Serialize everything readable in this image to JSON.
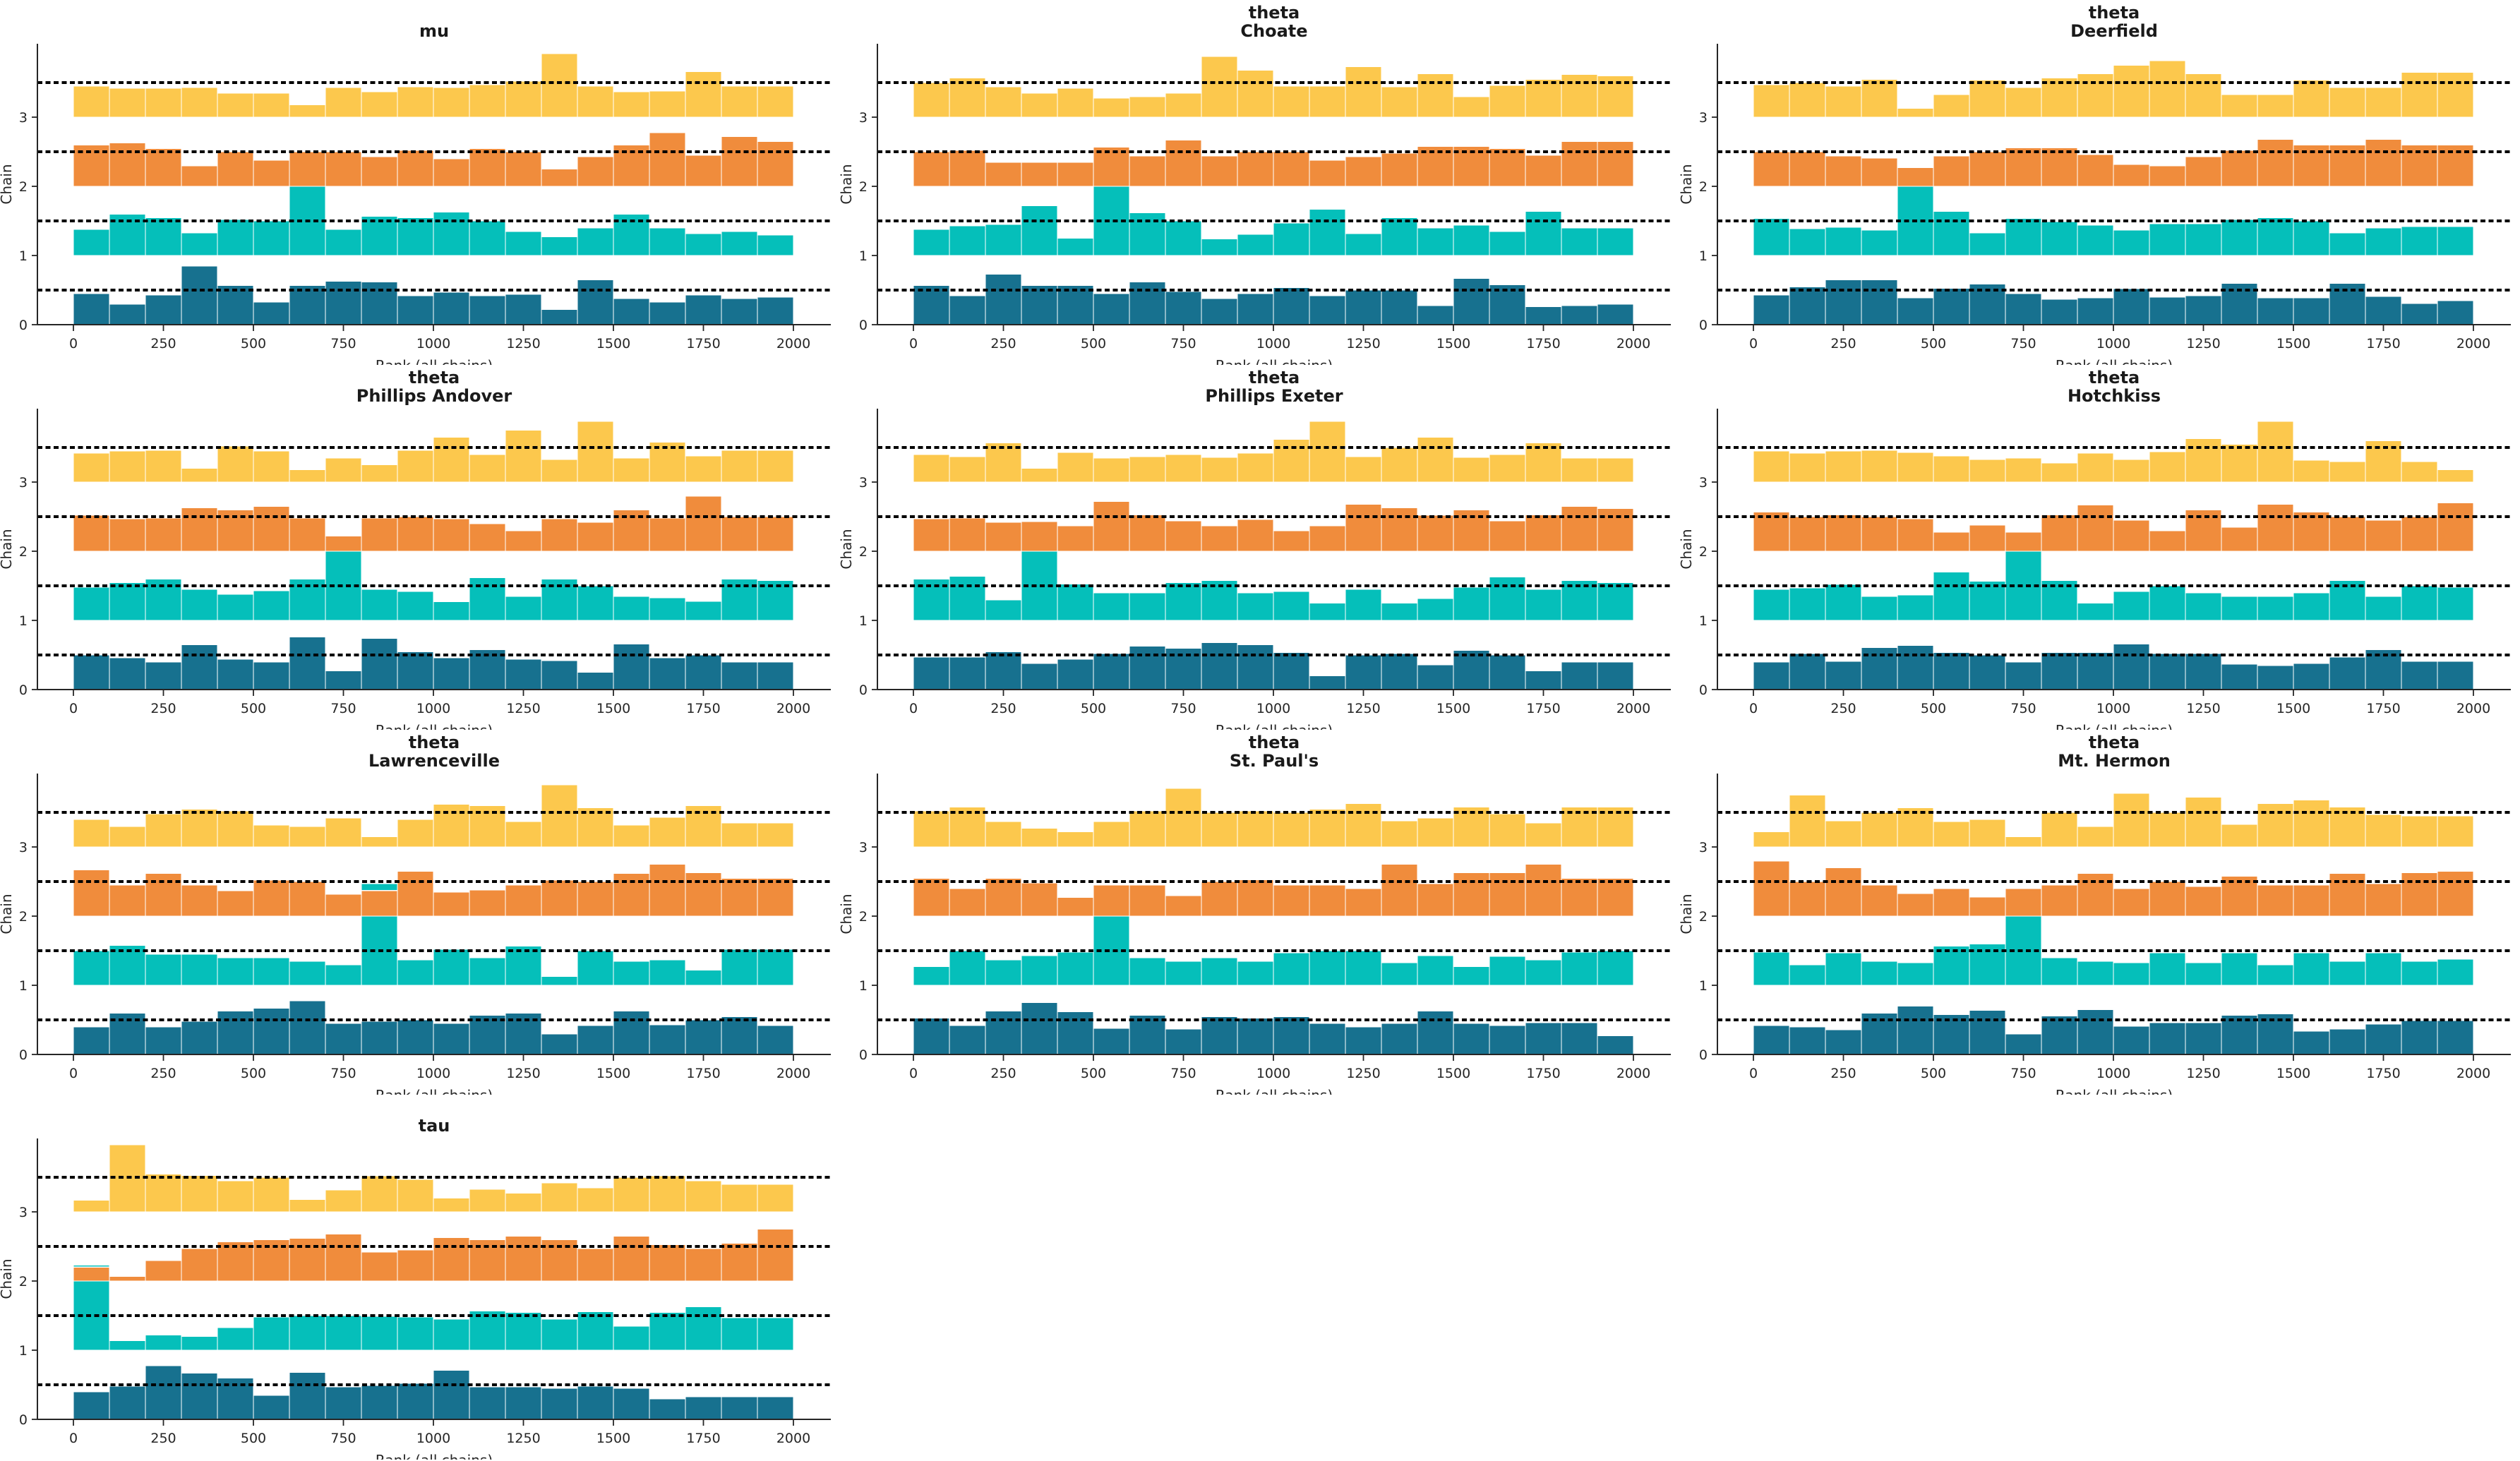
{
  "figure": {
    "kind": "mcmc-rank-plot-grid",
    "xlabel": "Rank (all chains)",
    "ylabel": "Chain"
  },
  "palette": {
    "chain_colors": [
      "#17718F",
      "#05BFBA",
      "#F08C3C",
      "#FCC84D"
    ],
    "reference_line": "#000000",
    "text": "#262626",
    "spine": "#262626",
    "bar_edge": "#ffffff",
    "background": "#ffffff"
  },
  "chart_data": {
    "type": "bar",
    "subtype": "rank-histogram",
    "layout": {
      "rows": 4,
      "cols": 3,
      "legend": "none",
      "grid": "off"
    },
    "xlabel": "Rank (all chains)",
    "ylabel": "Chain",
    "x_ticks": [
      0,
      250,
      500,
      750,
      1000,
      1250,
      1500,
      1750,
      2000
    ],
    "y_ticks": [
      0,
      1,
      2,
      3
    ],
    "x_range": [
      0,
      2000
    ],
    "y_range": [
      0,
      4.06
    ],
    "bins": 20,
    "n_chains": 4,
    "chain_base_offsets": [
      0,
      1,
      2,
      3
    ],
    "reference_line_offset": 0.5,
    "chain_colors": [
      "#17718F",
      "#05BFBA",
      "#F08C3C",
      "#FCC84D"
    ],
    "subplots": [
      {
        "id": "mu",
        "row": 0,
        "col": 0,
        "title_lines": [
          "mu"
        ],
        "chains": [
          [
            0.45,
            0.3,
            0.43,
            0.85,
            0.57,
            0.33,
            0.57,
            0.63,
            0.62,
            0.42,
            0.47,
            0.42,
            0.44,
            0.22,
            0.65,
            0.38,
            0.33,
            0.43,
            0.38,
            0.4
          ],
          [
            0.38,
            0.6,
            0.55,
            0.33,
            0.52,
            0.5,
            1.0,
            0.38,
            0.57,
            0.55,
            0.63,
            0.5,
            0.35,
            0.27,
            0.4,
            0.6,
            0.4,
            0.32,
            0.35,
            0.3
          ],
          [
            0.6,
            0.63,
            0.55,
            0.3,
            0.5,
            0.38,
            0.5,
            0.5,
            0.43,
            0.52,
            0.4,
            0.55,
            0.5,
            0.25,
            0.43,
            0.6,
            0.78,
            0.45,
            0.72,
            0.65
          ],
          [
            0.45,
            0.42,
            0.42,
            0.43,
            0.35,
            0.35,
            0.18,
            0.43,
            0.37,
            0.44,
            0.43,
            0.47,
            0.52,
            0.92,
            0.45,
            0.37,
            0.38,
            0.66,
            0.45,
            0.45
          ]
        ]
      },
      {
        "id": "theta-choate",
        "row": 0,
        "col": 1,
        "title_lines": [
          "theta",
          "Choate"
        ],
        "chains": [
          [
            0.57,
            0.42,
            0.73,
            0.57,
            0.57,
            0.45,
            0.62,
            0.48,
            0.38,
            0.45,
            0.54,
            0.42,
            0.5,
            0.5,
            0.28,
            0.67,
            0.58,
            0.26,
            0.28,
            0.3
          ],
          [
            0.38,
            0.43,
            0.45,
            0.72,
            0.25,
            1.0,
            0.62,
            0.5,
            0.24,
            0.31,
            0.47,
            0.67,
            0.32,
            0.55,
            0.4,
            0.44,
            0.35,
            0.64,
            0.4,
            0.4
          ],
          [
            0.5,
            0.52,
            0.35,
            0.35,
            0.35,
            0.57,
            0.44,
            0.67,
            0.44,
            0.5,
            0.5,
            0.38,
            0.43,
            0.48,
            0.58,
            0.58,
            0.55,
            0.45,
            0.65,
            0.65
          ],
          [
            0.5,
            0.57,
            0.44,
            0.35,
            0.42,
            0.28,
            0.3,
            0.35,
            0.88,
            0.68,
            0.45,
            0.45,
            0.73,
            0.44,
            0.63,
            0.3,
            0.46,
            0.55,
            0.62,
            0.6
          ]
        ]
      },
      {
        "id": "theta-deerfield",
        "row": 0,
        "col": 2,
        "title_lines": [
          "theta",
          "Deerfield"
        ],
        "chains": [
          [
            0.43,
            0.55,
            0.65,
            0.65,
            0.39,
            0.53,
            0.59,
            0.45,
            0.37,
            0.39,
            0.52,
            0.4,
            0.42,
            0.6,
            0.39,
            0.39,
            0.6,
            0.41,
            0.31,
            0.35
          ],
          [
            0.54,
            0.39,
            0.41,
            0.37,
            1.0,
            0.64,
            0.33,
            0.54,
            0.49,
            0.44,
            0.37,
            0.46,
            0.46,
            0.52,
            0.55,
            0.5,
            0.33,
            0.4,
            0.42,
            0.42
          ],
          [
            0.5,
            0.5,
            0.44,
            0.41,
            0.27,
            0.44,
            0.5,
            0.56,
            0.56,
            0.46,
            0.32,
            0.3,
            0.43,
            0.52,
            0.68,
            0.6,
            0.6,
            0.68,
            0.6,
            0.6
          ],
          [
            0.47,
            0.5,
            0.45,
            0.55,
            0.13,
            0.33,
            0.54,
            0.43,
            0.57,
            0.63,
            0.75,
            0.82,
            0.63,
            0.33,
            0.33,
            0.54,
            0.43,
            0.43,
            0.65,
            0.65
          ]
        ]
      },
      {
        "id": "theta-phillips-andover",
        "row": 1,
        "col": 0,
        "title_lines": [
          "theta",
          "Phillips Andover"
        ],
        "chains": [
          [
            0.5,
            0.46,
            0.4,
            0.65,
            0.44,
            0.4,
            0.76,
            0.27,
            0.74,
            0.55,
            0.46,
            0.58,
            0.44,
            0.42,
            0.25,
            0.66,
            0.46,
            0.5,
            0.4,
            0.4
          ],
          [
            0.48,
            0.55,
            0.6,
            0.45,
            0.38,
            0.43,
            0.6,
            1.0,
            0.45,
            0.42,
            0.27,
            0.62,
            0.35,
            0.6,
            0.5,
            0.35,
            0.33,
            0.28,
            0.6,
            0.58
          ],
          [
            0.52,
            0.47,
            0.48,
            0.63,
            0.6,
            0.65,
            0.48,
            0.22,
            0.48,
            0.5,
            0.47,
            0.4,
            0.3,
            0.47,
            0.42,
            0.6,
            0.48,
            0.8,
            0.5,
            0.5
          ],
          [
            0.42,
            0.45,
            0.46,
            0.2,
            0.52,
            0.45,
            0.18,
            0.35,
            0.25,
            0.46,
            0.65,
            0.4,
            0.75,
            0.33,
            0.88,
            0.35,
            0.58,
            0.38,
            0.46,
            0.46
          ]
        ]
      },
      {
        "id": "theta-phillips-exeter",
        "row": 1,
        "col": 1,
        "title_lines": [
          "theta",
          "Phillips Exeter"
        ],
        "chains": [
          [
            0.47,
            0.47,
            0.55,
            0.38,
            0.44,
            0.52,
            0.63,
            0.6,
            0.68,
            0.65,
            0.54,
            0.2,
            0.5,
            0.52,
            0.36,
            0.57,
            0.5,
            0.27,
            0.4,
            0.4
          ],
          [
            0.6,
            0.64,
            0.3,
            1.0,
            0.53,
            0.4,
            0.4,
            0.55,
            0.58,
            0.4,
            0.42,
            0.25,
            0.45,
            0.25,
            0.32,
            0.48,
            0.63,
            0.45,
            0.58,
            0.55
          ],
          [
            0.47,
            0.48,
            0.42,
            0.43,
            0.37,
            0.72,
            0.53,
            0.44,
            0.37,
            0.46,
            0.3,
            0.37,
            0.68,
            0.63,
            0.52,
            0.6,
            0.44,
            0.53,
            0.65,
            0.62
          ],
          [
            0.4,
            0.37,
            0.57,
            0.2,
            0.43,
            0.35,
            0.37,
            0.4,
            0.36,
            0.42,
            0.62,
            0.88,
            0.37,
            0.5,
            0.65,
            0.36,
            0.4,
            0.57,
            0.35,
            0.35
          ]
        ]
      },
      {
        "id": "theta-hotchkiss",
        "row": 1,
        "col": 2,
        "title_lines": [
          "theta",
          "Hotchkiss"
        ],
        "chains": [
          [
            0.4,
            0.52,
            0.41,
            0.61,
            0.64,
            0.54,
            0.5,
            0.4,
            0.54,
            0.54,
            0.66,
            0.52,
            0.52,
            0.37,
            0.35,
            0.38,
            0.47,
            0.58,
            0.41,
            0.41
          ],
          [
            0.45,
            0.47,
            0.52,
            0.35,
            0.37,
            0.7,
            0.57,
            1.0,
            0.58,
            0.25,
            0.42,
            0.5,
            0.4,
            0.35,
            0.35,
            0.4,
            0.58,
            0.35,
            0.5,
            0.48
          ],
          [
            0.57,
            0.5,
            0.53,
            0.5,
            0.47,
            0.28,
            0.38,
            0.28,
            0.53,
            0.67,
            0.45,
            0.3,
            0.6,
            0.35,
            0.68,
            0.57,
            0.5,
            0.45,
            0.5,
            0.7
          ],
          [
            0.45,
            0.42,
            0.45,
            0.46,
            0.43,
            0.38,
            0.33,
            0.35,
            0.28,
            0.42,
            0.33,
            0.44,
            0.63,
            0.55,
            0.88,
            0.32,
            0.3,
            0.6,
            0.3,
            0.18
          ]
        ]
      },
      {
        "id": "theta-lawrenceville",
        "row": 2,
        "col": 0,
        "title_lines": [
          "theta",
          "Lawrenceville"
        ],
        "chains": [
          [
            0.4,
            0.6,
            0.4,
            0.48,
            0.63,
            0.67,
            0.78,
            0.45,
            0.48,
            0.5,
            0.45,
            0.57,
            0.6,
            0.3,
            0.42,
            0.63,
            0.43,
            0.5,
            0.55,
            0.42
          ],
          [
            0.5,
            0.58,
            0.45,
            0.45,
            0.4,
            0.4,
            0.35,
            0.3,
            1.47,
            0.37,
            0.52,
            0.4,
            0.57,
            0.13,
            0.5,
            0.35,
            0.37,
            0.22,
            0.52,
            0.52
          ],
          [
            0.67,
            0.45,
            0.62,
            0.45,
            0.37,
            0.52,
            0.5,
            0.32,
            0.37,
            0.65,
            0.35,
            0.38,
            0.45,
            0.52,
            0.5,
            0.62,
            0.75,
            0.63,
            0.55,
            0.55
          ],
          [
            0.4,
            0.3,
            0.48,
            0.55,
            0.52,
            0.32,
            0.3,
            0.42,
            0.15,
            0.4,
            0.62,
            0.6,
            0.37,
            0.9,
            0.57,
            0.32,
            0.43,
            0.6,
            0.35,
            0.35
          ]
        ]
      },
      {
        "id": "theta-st-pauls",
        "row": 2,
        "col": 1,
        "title_lines": [
          "theta",
          "St. Paul's"
        ],
        "chains": [
          [
            0.53,
            0.42,
            0.63,
            0.75,
            0.62,
            0.38,
            0.57,
            0.37,
            0.55,
            0.53,
            0.55,
            0.45,
            0.4,
            0.45,
            0.63,
            0.45,
            0.42,
            0.46,
            0.46,
            0.27
          ],
          [
            0.27,
            0.5,
            0.37,
            0.43,
            0.48,
            1.0,
            0.4,
            0.35,
            0.4,
            0.35,
            0.47,
            0.5,
            0.5,
            0.33,
            0.43,
            0.27,
            0.42,
            0.37,
            0.48,
            0.5
          ],
          [
            0.55,
            0.4,
            0.55,
            0.48,
            0.27,
            0.45,
            0.45,
            0.3,
            0.5,
            0.53,
            0.45,
            0.45,
            0.4,
            0.75,
            0.47,
            0.63,
            0.63,
            0.75,
            0.55,
            0.55
          ],
          [
            0.52,
            0.58,
            0.37,
            0.27,
            0.22,
            0.37,
            0.52,
            0.85,
            0.5,
            0.52,
            0.5,
            0.55,
            0.63,
            0.38,
            0.42,
            0.58,
            0.48,
            0.35,
            0.58,
            0.58
          ]
        ]
      },
      {
        "id": "theta-mt-hermon",
        "row": 2,
        "col": 2,
        "title_lines": [
          "theta",
          "Mt. Hermon"
        ],
        "chains": [
          [
            0.42,
            0.4,
            0.36,
            0.6,
            0.7,
            0.58,
            0.64,
            0.3,
            0.56,
            0.65,
            0.41,
            0.46,
            0.46,
            0.57,
            0.59,
            0.34,
            0.37,
            0.44,
            0.49,
            0.49
          ],
          [
            0.48,
            0.3,
            0.47,
            0.35,
            0.33,
            0.57,
            0.6,
            1.0,
            0.4,
            0.35,
            0.33,
            0.47,
            0.33,
            0.47,
            0.3,
            0.47,
            0.35,
            0.47,
            0.35,
            0.38
          ],
          [
            0.8,
            0.5,
            0.7,
            0.45,
            0.33,
            0.4,
            0.28,
            0.4,
            0.45,
            0.62,
            0.4,
            0.5,
            0.43,
            0.58,
            0.45,
            0.45,
            0.62,
            0.47,
            0.63,
            0.65
          ],
          [
            0.22,
            0.75,
            0.38,
            0.5,
            0.57,
            0.37,
            0.4,
            0.15,
            0.5,
            0.3,
            0.78,
            0.5,
            0.72,
            0.33,
            0.63,
            0.68,
            0.58,
            0.47,
            0.45,
            0.45
          ]
        ]
      },
      {
        "id": "tau",
        "row": 3,
        "col": 0,
        "title_lines": [
          "tau"
        ],
        "chains": [
          [
            0.4,
            0.48,
            0.78,
            0.67,
            0.6,
            0.35,
            0.68,
            0.47,
            0.49,
            0.52,
            0.71,
            0.47,
            0.47,
            0.45,
            0.48,
            0.45,
            0.3,
            0.33,
            0.33,
            0.33
          ],
          [
            1.23,
            0.14,
            0.22,
            0.2,
            0.33,
            0.48,
            0.5,
            0.5,
            0.49,
            0.48,
            0.45,
            0.57,
            0.55,
            0.45,
            0.56,
            0.35,
            0.55,
            0.63,
            0.47,
            0.47
          ],
          [
            0.2,
            0.07,
            0.3,
            0.47,
            0.57,
            0.6,
            0.62,
            0.68,
            0.42,
            0.45,
            0.63,
            0.6,
            0.65,
            0.6,
            0.47,
            0.65,
            0.53,
            0.47,
            0.55,
            0.75
          ],
          [
            0.17,
            0.97,
            0.55,
            0.53,
            0.45,
            0.5,
            0.18,
            0.32,
            0.52,
            0.47,
            0.2,
            0.33,
            0.27,
            0.42,
            0.35,
            0.5,
            0.52,
            0.45,
            0.4,
            0.4
          ]
        ]
      }
    ]
  }
}
